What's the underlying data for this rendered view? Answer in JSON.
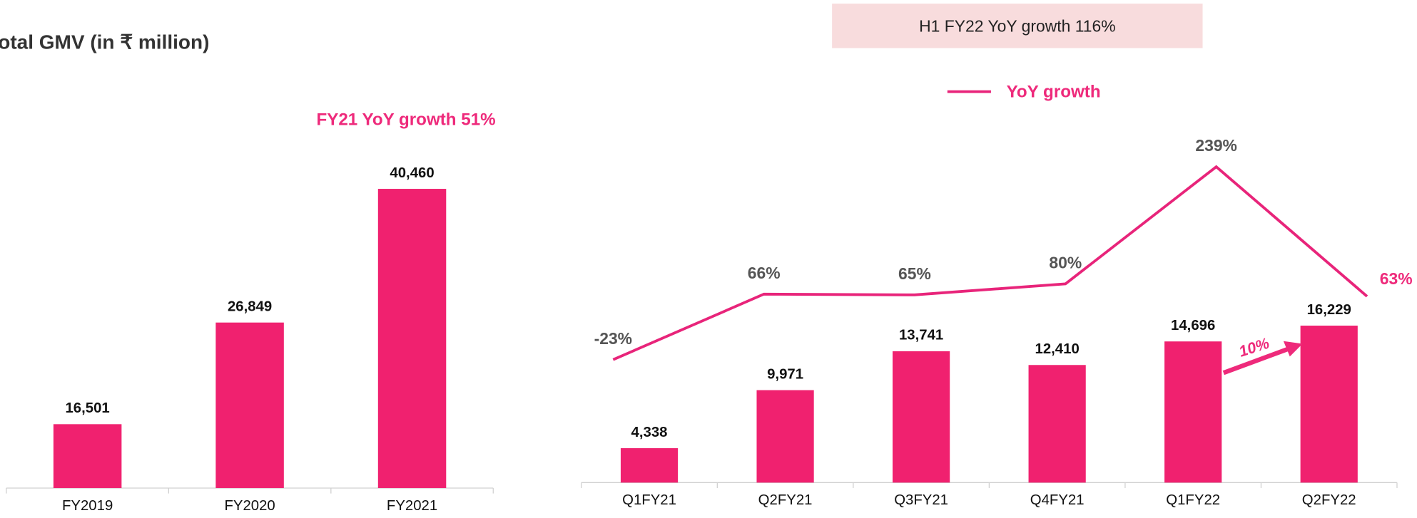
{
  "chart_data": [
    {
      "type": "bar",
      "title": "Total GMV (in ₹ million)",
      "annotation": "FY21 YoY growth 51%",
      "categories": [
        "FY2019",
        "FY2020",
        "FY2021"
      ],
      "values": [
        16501,
        26849,
        40460
      ],
      "value_labels": [
        "16,501",
        "26,849",
        "40,460"
      ],
      "color": "#f0216f",
      "ylim": [
        10000,
        45000
      ]
    },
    {
      "type": "bar",
      "annotation": "H1 FY22 YoY growth 116%",
      "arrow_label": "10%",
      "categories": [
        "Q1FY21",
        "Q2FY21",
        "Q3FY21",
        "Q4FY21",
        "Q1FY22",
        "Q2FY22"
      ],
      "values": [
        4338,
        9971,
        13741,
        12410,
        14696,
        16229
      ],
      "value_labels": [
        "4,338",
        "9,971",
        "13,741",
        "12,410",
        "14,696",
        "16,229"
      ],
      "color": "#f0216f",
      "ylim": [
        1000,
        35500
      ],
      "series": [
        {
          "name": "YoY growth",
          "color": "#e8247a",
          "axis": "y2",
          "values": [
            -23,
            66,
            65,
            80,
            239,
            63
          ],
          "value_labels": [
            "-23%",
            "66%",
            "65%",
            "80%",
            "239%",
            "63%"
          ]
        }
      ],
      "y2lim": [
        -190,
        293
      ]
    }
  ]
}
